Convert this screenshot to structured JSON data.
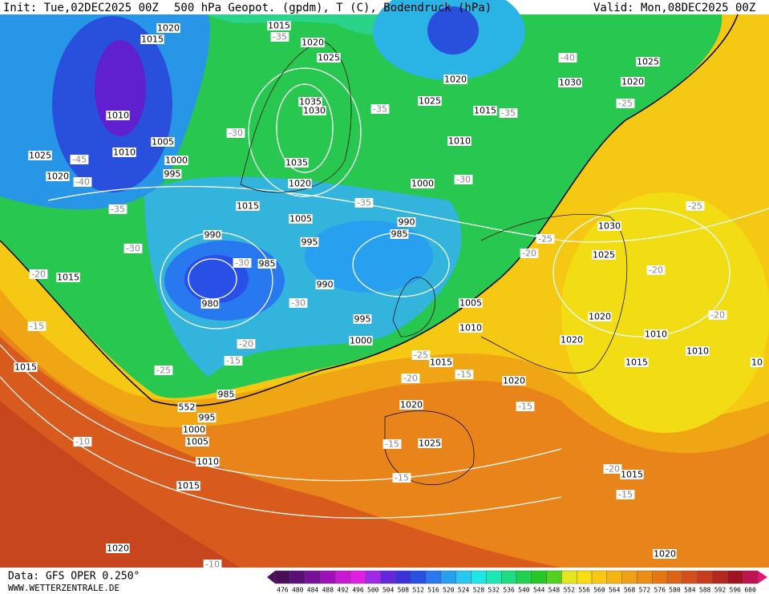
{
  "header": {
    "init": "Init: Tue,02DEC2025 00Z",
    "title": "500 hPa Geopot. (gpdm), T (C), Bodendruck (hPa)",
    "valid": "Valid: Mon,08DEC2025 00Z"
  },
  "footer": {
    "data": "Data: GFS OPER 0.250°",
    "site": "WWW.WETTERZENTRALE.DE"
  },
  "colorbar": {
    "values": [
      476,
      480,
      484,
      488,
      492,
      496,
      500,
      504,
      508,
      512,
      516,
      520,
      524,
      528,
      532,
      536,
      540,
      544,
      548,
      552,
      556,
      560,
      564,
      568,
      572,
      576,
      580,
      584,
      588,
      592,
      596,
      600
    ],
    "colors": [
      "#4b0f5a",
      "#5a0f78",
      "#78109a",
      "#a010b8",
      "#c81ad2",
      "#e01ee6",
      "#a028e6",
      "#6428dc",
      "#3c32dc",
      "#2850e6",
      "#2878f0",
      "#28a0f0",
      "#28c8f0",
      "#1ee6e6",
      "#1ee6b4",
      "#1edc82",
      "#1ed250",
      "#28c828",
      "#50d21e",
      "#e6e61e",
      "#fadc14",
      "#fac814",
      "#f5b414",
      "#f0a014",
      "#eb8c14",
      "#e67814",
      "#dc6414",
      "#d2501e",
      "#c83c1e",
      "#b4281e",
      "#a0141e",
      "#be1450"
    ]
  },
  "map_labels": {
    "isobars": [
      1020,
      1015,
      1015,
      1020,
      1025,
      1020,
      1025,
      1025,
      1030,
      1020,
      1010,
      1035,
      1030,
      1015,
      1010,
      1005,
      1025,
      1020,
      1000,
      995,
      1010,
      1035,
      1020,
      1000,
      1015,
      1005,
      990,
      985,
      990,
      995,
      985,
      1030,
      1025,
      1015,
      980,
      990,
      1005,
      1010,
      995,
      1000,
      1020,
      1020,
      1010,
      1010,
      1015,
      1015,
      1015,
      1020,
      1020,
      985,
      552,
      995,
      1000,
      1005,
      1025,
      1010,
      1015,
      1015,
      1020,
      1020,
      10
    ],
    "temperatures": [
      -35,
      -40,
      -35,
      -30,
      -45,
      -40,
      -35,
      -30,
      -35,
      -30,
      -25,
      -35,
      -25,
      -25,
      -20,
      -20,
      -30,
      -20,
      -30,
      -20,
      -15,
      -20,
      -15,
      -25,
      -25,
      -20,
      -15,
      -15,
      -15,
      -15,
      -10,
      -20,
      -15,
      -10
    ]
  }
}
